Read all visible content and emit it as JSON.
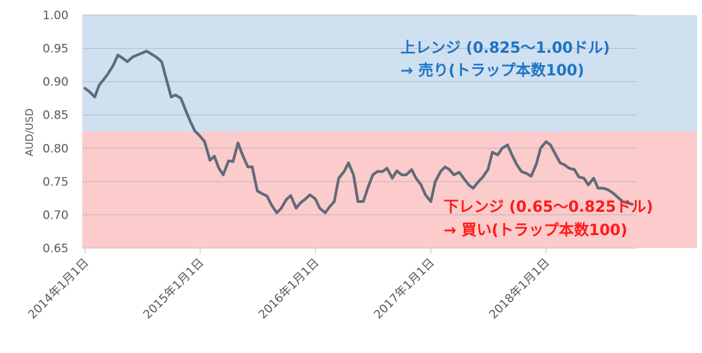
{
  "chart_data": {
    "type": "line",
    "title": "",
    "xlabel": "",
    "ylabel": "AUD/USD",
    "ylim": [
      0.65,
      1.0
    ],
    "xlim": [
      "2014-01-01",
      "2019-03-01"
    ],
    "yticks": [
      "0.65",
      "0.70",
      "0.75",
      "0.80",
      "0.85",
      "0.90",
      "0.95",
      "1.00"
    ],
    "xticks": [
      {
        "date": "2014-01-01",
        "label": "2014年1月1日"
      },
      {
        "date": "2015-01-01",
        "label": "2015年1月1日"
      },
      {
        "date": "2016-01-01",
        "label": "2016年1月1日"
      },
      {
        "date": "2017-01-01",
        "label": "2017年1月1日"
      },
      {
        "date": "2018-01-01",
        "label": "2018年1月1日"
      }
    ],
    "grid": true,
    "legend": "none",
    "bands": [
      {
        "from": 0.825,
        "to": 1.0,
        "color": "#cfe0f1",
        "label_line1": "上レンジ (0.825〜1.00ドル)",
        "label_line2": "→ 売り(トラップ本数100)",
        "text_color": "#1f74c4"
      },
      {
        "from": 0.65,
        "to": 0.825,
        "color": "#fccbcb",
        "label_line1": "下レンジ (0.65〜0.825ドル)",
        "label_line2": "→ 買い(トラップ本数100)",
        "text_color": "#ff1a1a"
      }
    ],
    "series": [
      {
        "color": "#5f6b78",
        "x": [
          "2014-01-01",
          "2014-01-15",
          "2014-02-01",
          "2014-02-15",
          "2014-03-01",
          "2014-03-15",
          "2014-04-01",
          "2014-04-15",
          "2014-05-01",
          "2014-05-15",
          "2014-06-01",
          "2014-06-15",
          "2014-07-01",
          "2014-07-15",
          "2014-08-01",
          "2014-08-15",
          "2014-09-01",
          "2014-09-15",
          "2014-10-01",
          "2014-10-15",
          "2014-11-01",
          "2014-11-15",
          "2014-12-01",
          "2014-12-15",
          "2015-01-01",
          "2015-01-15",
          "2015-02-01",
          "2015-02-15",
          "2015-03-01",
          "2015-03-15",
          "2015-04-01",
          "2015-04-15",
          "2015-05-01",
          "2015-05-15",
          "2015-06-01",
          "2015-06-15",
          "2015-07-01",
          "2015-07-15",
          "2015-08-01",
          "2015-08-15",
          "2015-09-01",
          "2015-09-15",
          "2015-10-01",
          "2015-10-15",
          "2015-11-01",
          "2015-11-15",
          "2015-12-01",
          "2015-12-15",
          "2016-01-01",
          "2016-01-15",
          "2016-02-01",
          "2016-02-15",
          "2016-03-01",
          "2016-03-15",
          "2016-04-01",
          "2016-04-15",
          "2016-05-01",
          "2016-05-15",
          "2016-06-01",
          "2016-06-15",
          "2016-07-01",
          "2016-07-15",
          "2016-08-01",
          "2016-08-15",
          "2016-09-01",
          "2016-09-15",
          "2016-10-01",
          "2016-10-15",
          "2016-11-01",
          "2016-11-15",
          "2016-12-01",
          "2016-12-15",
          "2017-01-01",
          "2017-01-15",
          "2017-02-01",
          "2017-02-15",
          "2017-03-01",
          "2017-03-15",
          "2017-04-01",
          "2017-04-15",
          "2017-05-01",
          "2017-05-15",
          "2017-06-01",
          "2017-06-15",
          "2017-07-01",
          "2017-07-15",
          "2017-08-01",
          "2017-08-15",
          "2017-09-01",
          "2017-09-15",
          "2017-10-01",
          "2017-10-15",
          "2017-11-01",
          "2017-11-15",
          "2017-12-01",
          "2017-12-15",
          "2018-01-01",
          "2018-01-15",
          "2018-02-01",
          "2018-02-15",
          "2018-03-01",
          "2018-03-15",
          "2018-04-01",
          "2018-04-15",
          "2018-05-01",
          "2018-05-15",
          "2018-06-01",
          "2018-06-15",
          "2018-07-01",
          "2018-07-15",
          "2018-08-01",
          "2018-08-15",
          "2018-09-01",
          "2018-09-15",
          "2018-10-01"
        ],
        "values": [
          0.89,
          0.885,
          0.877,
          0.895,
          0.903,
          0.912,
          0.925,
          0.94,
          0.935,
          0.93,
          0.937,
          0.94,
          0.943,
          0.946,
          0.941,
          0.937,
          0.93,
          0.905,
          0.877,
          0.88,
          0.875,
          0.858,
          0.84,
          0.826,
          0.818,
          0.81,
          0.782,
          0.788,
          0.77,
          0.76,
          0.781,
          0.78,
          0.808,
          0.79,
          0.772,
          0.772,
          0.736,
          0.732,
          0.728,
          0.715,
          0.703,
          0.71,
          0.723,
          0.729,
          0.71,
          0.718,
          0.724,
          0.73,
          0.724,
          0.71,
          0.703,
          0.712,
          0.72,
          0.755,
          0.765,
          0.778,
          0.76,
          0.72,
          0.72,
          0.74,
          0.76,
          0.765,
          0.765,
          0.77,
          0.755,
          0.766,
          0.76,
          0.76,
          0.768,
          0.755,
          0.745,
          0.73,
          0.72,
          0.75,
          0.765,
          0.772,
          0.768,
          0.76,
          0.764,
          0.755,
          0.745,
          0.74,
          0.75,
          0.757,
          0.768,
          0.794,
          0.79,
          0.8,
          0.805,
          0.79,
          0.775,
          0.765,
          0.762,
          0.758,
          0.776,
          0.8,
          0.81,
          0.805,
          0.79,
          0.778,
          0.775,
          0.77,
          0.768,
          0.757,
          0.755,
          0.745,
          0.755,
          0.74,
          0.74,
          0.738,
          0.733,
          0.727,
          0.72,
          0.718,
          0.716
        ]
      }
    ]
  }
}
